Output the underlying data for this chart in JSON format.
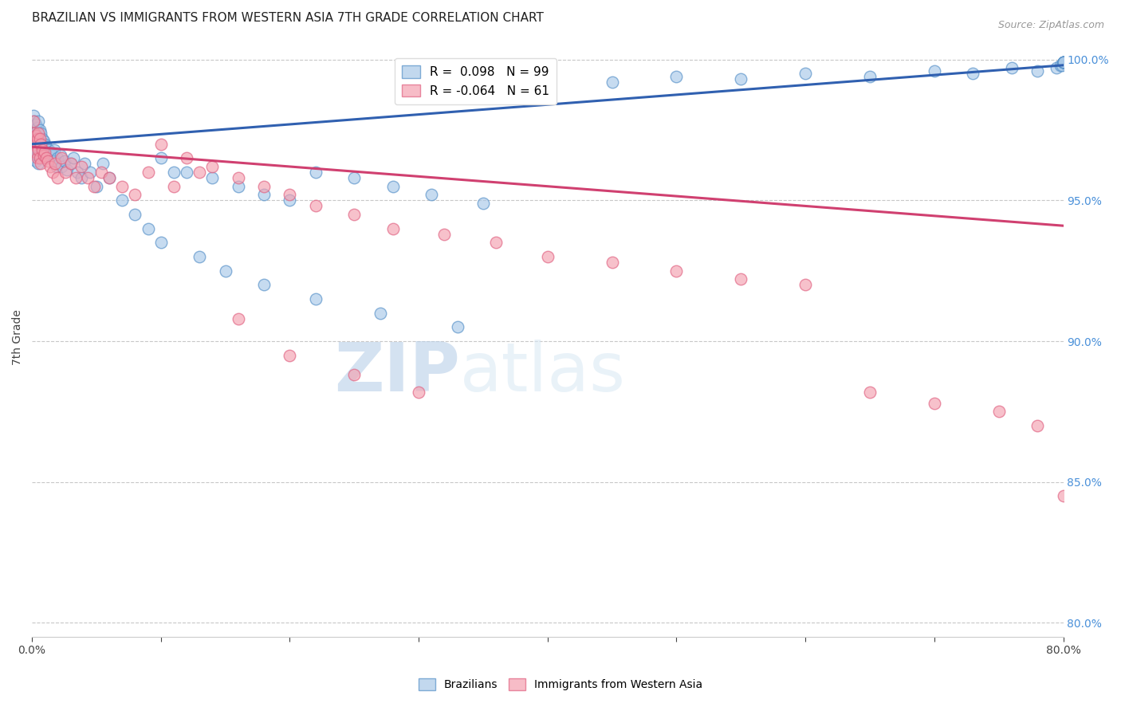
{
  "title": "BRAZILIAN VS IMMIGRANTS FROM WESTERN ASIA 7TH GRADE CORRELATION CHART",
  "source": "Source: ZipAtlas.com",
  "ylabel": "7th Grade",
  "xlim": [
    0.0,
    0.8
  ],
  "ylim": [
    0.795,
    1.008
  ],
  "blue_R": 0.098,
  "blue_N": 99,
  "pink_R": -0.064,
  "pink_N": 61,
  "blue_color": "#a8c8e8",
  "pink_color": "#f4a0b0",
  "blue_edge_color": "#5590c8",
  "pink_edge_color": "#e06080",
  "blue_line_color": "#3060b0",
  "pink_line_color": "#d04070",
  "legend_label_blue": "Brazilians",
  "legend_label_pink": "Immigrants from Western Asia",
  "watermark_zip": "ZIP",
  "watermark_atlas": "atlas",
  "background_color": "#ffffff",
  "grid_color": "#c8c8c8",
  "title_fontsize": 11,
  "right_axis_color": "#4a90d9",
  "yticks_right": [
    0.8,
    0.85,
    0.9,
    0.95,
    1.0
  ],
  "yticklabels_right": [
    "80.0%",
    "85.0%",
    "90.0%",
    "95.0%",
    "100.0%"
  ],
  "blue_trend_y0": 0.97,
  "blue_trend_y1": 0.998,
  "pink_trend_y0": 0.969,
  "pink_trend_y1": 0.941,
  "blue_x": [
    0.001,
    0.001,
    0.001,
    0.002,
    0.002,
    0.002,
    0.002,
    0.003,
    0.003,
    0.003,
    0.003,
    0.003,
    0.004,
    0.004,
    0.004,
    0.004,
    0.005,
    0.005,
    0.005,
    0.005,
    0.005,
    0.006,
    0.006,
    0.006,
    0.007,
    0.007,
    0.007,
    0.008,
    0.008,
    0.009,
    0.009,
    0.01,
    0.01,
    0.011,
    0.012,
    0.013,
    0.014,
    0.015,
    0.016,
    0.017,
    0.018,
    0.019,
    0.02,
    0.021,
    0.022,
    0.023,
    0.025,
    0.027,
    0.03,
    0.032,
    0.035,
    0.038,
    0.041,
    0.045,
    0.05,
    0.055,
    0.06,
    0.07,
    0.08,
    0.09,
    0.1,
    0.11,
    0.13,
    0.15,
    0.18,
    0.22,
    0.27,
    0.33,
    0.1,
    0.12,
    0.14,
    0.16,
    0.18,
    0.2,
    0.22,
    0.25,
    0.28,
    0.31,
    0.35,
    0.4,
    0.45,
    0.5,
    0.55,
    0.6,
    0.65,
    0.7,
    0.73,
    0.76,
    0.78,
    0.795,
    0.798,
    0.799,
    0.8,
    0.8,
    0.8,
    0.8,
    0.8,
    0.8,
    0.8
  ],
  "blue_y": [
    0.98,
    0.975,
    0.97,
    0.978,
    0.974,
    0.971,
    0.968,
    0.977,
    0.973,
    0.97,
    0.967,
    0.964,
    0.976,
    0.972,
    0.969,
    0.966,
    0.978,
    0.974,
    0.97,
    0.967,
    0.963,
    0.975,
    0.971,
    0.967,
    0.974,
    0.97,
    0.966,
    0.972,
    0.968,
    0.971,
    0.967,
    0.97,
    0.966,
    0.969,
    0.967,
    0.968,
    0.965,
    0.967,
    0.966,
    0.968,
    0.964,
    0.962,
    0.965,
    0.963,
    0.966,
    0.962,
    0.964,
    0.961,
    0.963,
    0.965,
    0.96,
    0.958,
    0.963,
    0.96,
    0.955,
    0.963,
    0.958,
    0.95,
    0.945,
    0.94,
    0.935,
    0.96,
    0.93,
    0.925,
    0.92,
    0.915,
    0.91,
    0.905,
    0.965,
    0.96,
    0.958,
    0.955,
    0.952,
    0.95,
    0.96,
    0.958,
    0.955,
    0.952,
    0.949,
    0.99,
    0.992,
    0.994,
    0.993,
    0.995,
    0.994,
    0.996,
    0.995,
    0.997,
    0.996,
    0.997,
    0.998,
    0.998,
    0.999,
    0.999,
    0.999,
    0.999,
    0.999,
    0.999,
    0.999
  ],
  "pink_x": [
    0.001,
    0.002,
    0.002,
    0.003,
    0.003,
    0.004,
    0.004,
    0.005,
    0.005,
    0.006,
    0.006,
    0.007,
    0.007,
    0.008,
    0.009,
    0.01,
    0.011,
    0.012,
    0.014,
    0.016,
    0.018,
    0.02,
    0.023,
    0.026,
    0.03,
    0.034,
    0.038,
    0.043,
    0.048,
    0.054,
    0.06,
    0.07,
    0.08,
    0.09,
    0.11,
    0.13,
    0.16,
    0.2,
    0.25,
    0.3,
    0.1,
    0.12,
    0.14,
    0.16,
    0.18,
    0.2,
    0.22,
    0.25,
    0.28,
    0.32,
    0.36,
    0.4,
    0.45,
    0.5,
    0.55,
    0.6,
    0.65,
    0.7,
    0.75,
    0.78,
    0.8
  ],
  "pink_y": [
    0.978,
    0.974,
    0.97,
    0.973,
    0.967,
    0.972,
    0.965,
    0.974,
    0.968,
    0.972,
    0.965,
    0.97,
    0.963,
    0.968,
    0.966,
    0.967,
    0.965,
    0.964,
    0.962,
    0.96,
    0.963,
    0.958,
    0.965,
    0.96,
    0.963,
    0.958,
    0.962,
    0.958,
    0.955,
    0.96,
    0.958,
    0.955,
    0.952,
    0.96,
    0.955,
    0.96,
    0.908,
    0.895,
    0.888,
    0.882,
    0.97,
    0.965,
    0.962,
    0.958,
    0.955,
    0.952,
    0.948,
    0.945,
    0.94,
    0.938,
    0.935,
    0.93,
    0.928,
    0.925,
    0.922,
    0.92,
    0.882,
    0.878,
    0.875,
    0.87,
    0.845
  ]
}
